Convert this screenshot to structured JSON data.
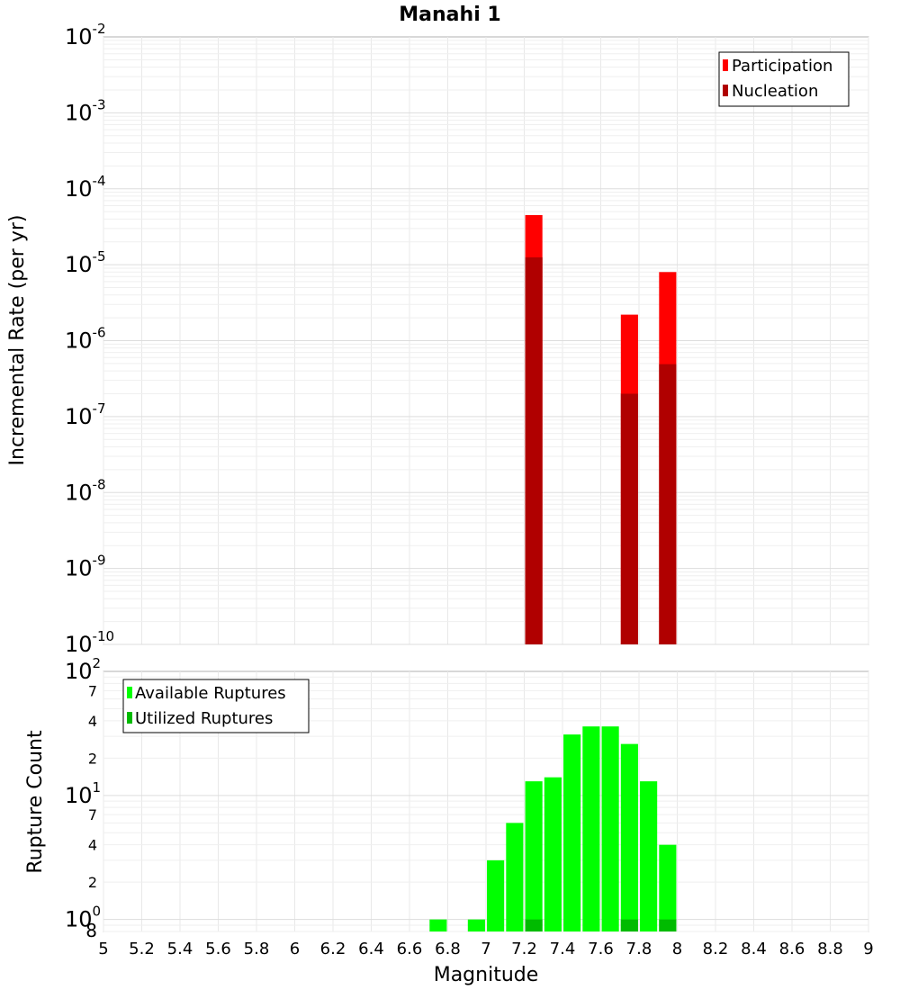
{
  "chart_data": [
    {
      "type": "bar",
      "title": "Manahi 1",
      "xlabel": "Magnitude",
      "ylabel": "Incremental Rate (per yr)",
      "yscale": "log",
      "xlim": [
        5,
        9
      ],
      "ylim": [
        1e-10,
        0.01
      ],
      "xticks": [
        "5",
        "5.2",
        "5.4",
        "5.6",
        "5.8",
        "6",
        "6.2",
        "6.4",
        "6.6",
        "6.8",
        "7",
        "7.2",
        "7.4",
        "7.6",
        "7.8",
        "8",
        "8.2",
        "8.4",
        "8.6",
        "8.8",
        "9"
      ],
      "yticks": [
        {
          "base": "10",
          "exp": "-2"
        },
        {
          "base": "10",
          "exp": "-3"
        },
        {
          "base": "10",
          "exp": "-4"
        },
        {
          "base": "10",
          "exp": "-5"
        },
        {
          "base": "10",
          "exp": "-6"
        },
        {
          "base": "10",
          "exp": "-7"
        },
        {
          "base": "10",
          "exp": "-8"
        },
        {
          "base": "10",
          "exp": "-9"
        },
        {
          "base": "10",
          "exp": "-10"
        }
      ],
      "legend": "top-right",
      "series": [
        {
          "name": "Participation",
          "color": "#ff0000",
          "x": [
            7.25,
            7.75,
            7.95
          ],
          "values": [
            4.5e-05,
            2.2e-06,
            8e-06
          ]
        },
        {
          "name": "Nucleation",
          "color": "#b00000",
          "x": [
            7.25,
            7.75,
            7.95
          ],
          "values": [
            1.25e-05,
            2e-07,
            4.9e-07
          ]
        }
      ]
    },
    {
      "type": "bar",
      "xlabel": "Magnitude",
      "ylabel": "Rupture Count",
      "yscale": "log",
      "xlim": [
        5,
        9
      ],
      "ylim": [
        0.8,
        100
      ],
      "yticks": [
        {
          "base": "10",
          "exp": "2"
        },
        {
          "base": "7",
          "exp": ""
        },
        {
          "base": "4",
          "exp": ""
        },
        {
          "base": "2",
          "exp": ""
        },
        {
          "base": "10",
          "exp": "1"
        },
        {
          "base": "7",
          "exp": ""
        },
        {
          "base": "4",
          "exp": ""
        },
        {
          "base": "2",
          "exp": ""
        },
        {
          "base": "10",
          "exp": "0"
        },
        {
          "base": "8",
          "exp": ""
        }
      ],
      "legend": "top-left",
      "series": [
        {
          "name": "Available Ruptures",
          "color": "#00ff00",
          "x": [
            6.75,
            6.95,
            7.05,
            7.15,
            7.25,
            7.35,
            7.45,
            7.55,
            7.65,
            7.75,
            7.85,
            7.95
          ],
          "values": [
            1,
            1,
            3,
            6,
            13,
            14,
            31,
            36,
            36,
            26,
            13,
            4
          ]
        },
        {
          "name": "Utilized Ruptures",
          "color": "#00bb00",
          "x": [
            7.25,
            7.75,
            7.95
          ],
          "values": [
            1,
            1,
            1
          ]
        }
      ]
    }
  ]
}
